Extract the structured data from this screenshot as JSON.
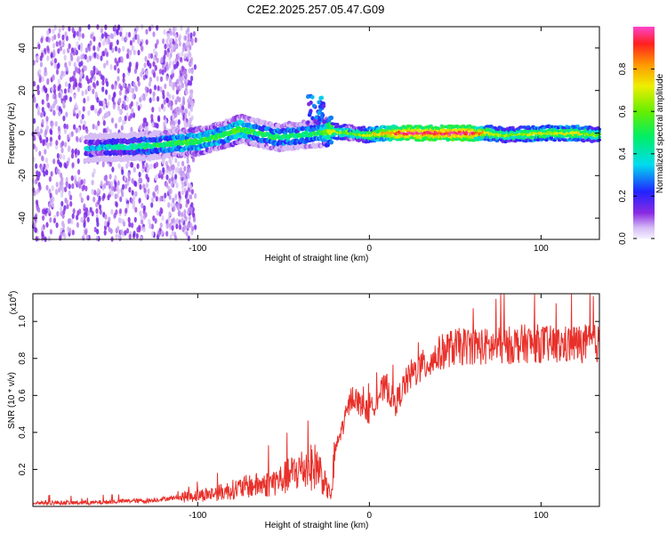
{
  "title": "C2E2.2025.257.05.47.G09",
  "colors": {
    "line": "#e8302a",
    "axis": "#000000",
    "spec_low": "#8a2be2",
    "spec_mid": "#00e5e5",
    "spec_high": "#e8202a"
  },
  "chart_data": [
    {
      "type": "heatmap",
      "title": "C2E2.2025.257.05.47.G09",
      "xlabel": "Height of straight line (km)",
      "ylabel": "Frequency (Hz)",
      "xlim": [
        -196,
        134
      ],
      "ylim": [
        -50,
        50
      ],
      "xticks": [
        -100,
        0,
        100
      ],
      "xtick_labels": [
        "-100",
        "0",
        "100"
      ],
      "yticks": [
        -40,
        -20,
        0,
        20,
        40
      ],
      "ytick_labels": [
        "-40",
        "-20",
        "0",
        "20",
        "40"
      ],
      "colorbar": {
        "label": "Normalized spectral amplitude",
        "range": [
          0,
          1
        ],
        "ticks": [
          0.0,
          0.2,
          0.4,
          0.6,
          0.8
        ],
        "tick_labels": [
          "0.0",
          "0.2",
          "0.4",
          "0.6",
          "0.8"
        ]
      },
      "ridge": {
        "x": [
          -160,
          -130,
          -115,
          -100,
          -85,
          -75,
          -65,
          -55,
          -40,
          -28,
          -22,
          -10,
          0,
          10,
          20,
          40,
          60,
          70,
          80,
          100,
          120,
          134
        ],
        "y": [
          -7,
          -6,
          -5,
          -4,
          -1,
          2,
          0,
          -2,
          -1,
          0,
          1,
          0,
          -1,
          0,
          0,
          0,
          0,
          0,
          -1,
          0,
          0,
          -1
        ],
        "amplitude": [
          0.35,
          0.45,
          0.5,
          0.55,
          0.5,
          0.55,
          0.45,
          0.5,
          0.45,
          0.5,
          0.7,
          0.55,
          0.7,
          0.8,
          0.95,
          0.95,
          0.95,
          0.7,
          0.6,
          0.7,
          0.7,
          0.6
        ]
      }
    },
    {
      "type": "line",
      "xlabel": "Height of straight line (km)",
      "ylabel": "SNR (10 * v/v)",
      "scale_label_base": "(x10",
      "scale_label_exp": "4",
      "scale_label_close": ")",
      "xlim": [
        -196,
        134
      ],
      "ylim": [
        0,
        1.15
      ],
      "xticks": [
        -100,
        0,
        100
      ],
      "xtick_labels": [
        "-100",
        "0",
        "100"
      ],
      "yticks": [
        0.2,
        0.4,
        0.6,
        0.8,
        1.0
      ],
      "ytick_labels": [
        "0.2",
        "0.4",
        "0.6",
        "0.8",
        "1.0"
      ],
      "series": [
        {
          "name": "SNR",
          "x": [
            -196,
            -180,
            -160,
            -140,
            -130,
            -120,
            -110,
            -100,
            -90,
            -80,
            -70,
            -60,
            -50,
            -40,
            -30,
            -25,
            -22,
            -20,
            -15,
            -10,
            -5,
            0,
            5,
            10,
            15,
            20,
            25,
            30,
            35,
            40,
            45,
            50,
            60,
            70,
            80,
            90,
            100,
            110,
            120,
            134
          ],
          "values": [
            0.02,
            0.02,
            0.02,
            0.03,
            0.03,
            0.04,
            0.05,
            0.06,
            0.07,
            0.09,
            0.11,
            0.12,
            0.15,
            0.2,
            0.22,
            0.1,
            0.06,
            0.3,
            0.45,
            0.6,
            0.55,
            0.5,
            0.6,
            0.65,
            0.55,
            0.65,
            0.72,
            0.75,
            0.78,
            0.82,
            0.85,
            0.86,
            0.87,
            0.86,
            0.87,
            0.88,
            0.88,
            0.87,
            0.88,
            0.88
          ]
        }
      ]
    }
  ]
}
